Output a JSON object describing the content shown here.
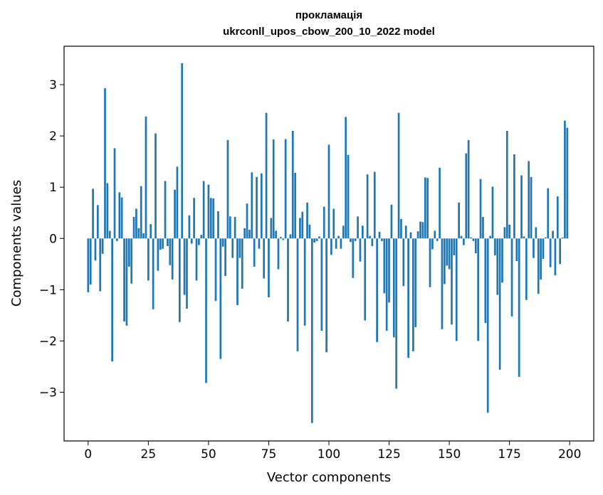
{
  "chart_data": {
    "type": "bar",
    "title": "прокламація",
    "subtitle": "ukrconll_upos_cbow_200_10_2022 model",
    "xlabel": "Vector components",
    "ylabel": "Components values",
    "xlim": [
      -10,
      210
    ],
    "ylim": [
      -3.95,
      3.75
    ],
    "x_ticks": [
      0,
      25,
      50,
      75,
      100,
      125,
      150,
      175,
      200
    ],
    "y_ticks": [
      -3,
      -2,
      -1,
      0,
      1,
      2,
      3
    ],
    "x_tick_labels": [
      "0",
      "25",
      "50",
      "75",
      "100",
      "125",
      "150",
      "175",
      "200"
    ],
    "y_tick_labels": [
      "−3",
      "−2",
      "−1",
      "0",
      "1",
      "2",
      "3"
    ],
    "bar_color": "#1f77b4",
    "values": [
      -1.05,
      -0.9,
      0.97,
      -0.43,
      0.65,
      -1.03,
      -0.3,
      2.93,
      1.08,
      0.15,
      -2.4,
      1.76,
      -0.05,
      0.9,
      0.8,
      -1.62,
      -1.7,
      -0.55,
      -0.88,
      0.42,
      0.58,
      0.2,
      1.02,
      0.1,
      2.38,
      -0.82,
      0.28,
      -1.38,
      2.05,
      -0.63,
      -0.22,
      -0.2,
      1.12,
      -0.15,
      -0.52,
      -0.8,
      0.95,
      1.4,
      -1.63,
      3.42,
      -1.1,
      -1.37,
      0.45,
      -0.1,
      0.79,
      -0.82,
      -0.13,
      0.07,
      1.12,
      -2.82,
      1.05,
      0.79,
      0.78,
      -1.22,
      0.53,
      -2.35,
      -0.16,
      -0.73,
      1.92,
      0.43,
      -0.38,
      0.42,
      -1.3,
      -0.38,
      -0.98,
      0.2,
      0.68,
      0.17,
      1.29,
      -0.55,
      1.2,
      -0.2,
      1.27,
      -0.78,
      2.45,
      -1.15,
      0.4,
      1.93,
      0.15,
      -0.6,
      0.03,
      -0.03,
      1.94,
      -1.62,
      0.08,
      2.1,
      1.28,
      -2.2,
      0.4,
      0.52,
      -1.7,
      0.7,
      0.27,
      -3.6,
      -0.08,
      -0.05,
      0.04,
      -1.8,
      0.62,
      -2.22,
      1.83,
      -0.32,
      0.58,
      -0.2,
      0.05,
      -0.2,
      0.25,
      2.37,
      1.63,
      -0.07,
      -0.77,
      -0.05,
      0.43,
      -0.45,
      0.25,
      -1.6,
      1.25,
      0.05,
      -0.15,
      1.3,
      -2.02,
      0.13,
      -0.05,
      -1.07,
      -1.8,
      -1.25,
      0.66,
      -1.93,
      -2.93,
      2.45,
      0.38,
      -0.93,
      0.25,
      -2.33,
      0.12,
      -2.2,
      -1.73,
      0.14,
      0.33,
      0.32,
      1.19,
      1.18,
      -0.95,
      -0.21,
      0.15,
      -0.05,
      1.38,
      -1.77,
      -0.89,
      -0.53,
      -0.6,
      -1.68,
      -0.33,
      -2.0,
      0.7,
      0.05,
      -0.13,
      1.66,
      1.92,
      0.02,
      -0.05,
      -0.29,
      -2.0,
      1.16,
      0.42,
      -1.65,
      -3.4,
      0.05,
      1.01,
      -0.33,
      -1.1,
      -2.56,
      -0.86,
      0.22,
      2.1,
      0.27,
      -1.52,
      1.64,
      -0.44,
      -2.7,
      1.23,
      0.04,
      -1.2,
      1.51,
      1.2,
      -0.38,
      0.22,
      -1.08,
      -0.8,
      -0.4,
      0.02,
      0.98,
      -0.56,
      0.15,
      -0.72,
      0.82,
      -0.5,
      0.02,
      2.3,
      2.16
    ]
  }
}
